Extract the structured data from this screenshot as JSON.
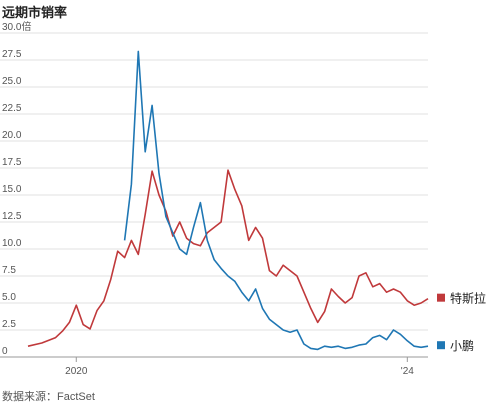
{
  "title": "远期市销率",
  "source": "数据来源：FactSet",
  "chart_data": {
    "type": "line",
    "title": "远期市销率",
    "y_ticks": [
      "0",
      "2.5",
      "5.0",
      "7.5",
      "10.0",
      "12.5",
      "15.0",
      "17.5",
      "20.0",
      "22.5",
      "25.0",
      "27.5",
      "30.0倍"
    ],
    "y_tick_values": [
      0,
      2.5,
      5,
      7.5,
      10,
      12.5,
      15,
      17.5,
      20,
      22.5,
      25,
      27.5,
      30
    ],
    "ylim": [
      0,
      30
    ],
    "x_ticks": [
      "2020",
      "'24"
    ],
    "x_tick_values": [
      "2020-01",
      "2024-01"
    ],
    "xlim": [
      "2019-06",
      "2024-04"
    ],
    "grid": true,
    "legend_position": "right",
    "series": [
      {
        "name": "特斯拉",
        "color": "#c0393b",
        "points": [
          [
            "2019-06",
            1.0
          ],
          [
            "2019-08",
            1.3
          ],
          [
            "2019-10",
            1.8
          ],
          [
            "2019-11",
            2.4
          ],
          [
            "2019-12",
            3.2
          ],
          [
            "2020-01",
            4.8
          ],
          [
            "2020-02",
            3.0
          ],
          [
            "2020-03",
            2.6
          ],
          [
            "2020-04",
            4.3
          ],
          [
            "2020-05",
            5.2
          ],
          [
            "2020-06",
            7.2
          ],
          [
            "2020-07",
            9.8
          ],
          [
            "2020-08",
            9.2
          ],
          [
            "2020-09",
            10.8
          ],
          [
            "2020-10",
            9.5
          ],
          [
            "2020-11",
            13.2
          ],
          [
            "2020-12",
            17.2
          ],
          [
            "2021-01",
            15.0
          ],
          [
            "2021-02",
            13.5
          ],
          [
            "2021-03",
            11.2
          ],
          [
            "2021-04",
            12.5
          ],
          [
            "2021-05",
            11.0
          ],
          [
            "2021-06",
            10.5
          ],
          [
            "2021-07",
            10.3
          ],
          [
            "2021-08",
            11.5
          ],
          [
            "2021-09",
            12.0
          ],
          [
            "2021-10",
            12.5
          ],
          [
            "2021-11",
            17.3
          ],
          [
            "2021-12",
            15.5
          ],
          [
            "2022-01",
            14.0
          ],
          [
            "2022-02",
            10.8
          ],
          [
            "2022-03",
            12.0
          ],
          [
            "2022-04",
            11.0
          ],
          [
            "2022-05",
            8.0
          ],
          [
            "2022-06",
            7.5
          ],
          [
            "2022-07",
            8.5
          ],
          [
            "2022-08",
            8.0
          ],
          [
            "2022-09",
            7.5
          ],
          [
            "2022-10",
            6.0
          ],
          [
            "2022-11",
            4.5
          ],
          [
            "2022-12",
            3.2
          ],
          [
            "2023-01",
            4.2
          ],
          [
            "2023-02",
            6.3
          ],
          [
            "2023-03",
            5.6
          ],
          [
            "2023-04",
            5.0
          ],
          [
            "2023-05",
            5.5
          ],
          [
            "2023-06",
            7.5
          ],
          [
            "2023-07",
            7.8
          ],
          [
            "2023-08",
            6.5
          ],
          [
            "2023-09",
            6.8
          ],
          [
            "2023-10",
            6.0
          ],
          [
            "2023-11",
            6.3
          ],
          [
            "2023-12",
            6.0
          ],
          [
            "2024-01",
            5.2
          ],
          [
            "2024-02",
            4.8
          ],
          [
            "2024-03",
            5.0
          ],
          [
            "2024-04",
            5.4
          ]
        ]
      },
      {
        "name": "小鹏",
        "color": "#1f77b4",
        "points": [
          [
            "2020-08",
            10.8
          ],
          [
            "2020-09",
            16.0
          ],
          [
            "2020-10",
            28.3
          ],
          [
            "2020-11",
            19.0
          ],
          [
            "2020-12",
            23.3
          ],
          [
            "2021-01",
            17.0
          ],
          [
            "2021-02",
            13.0
          ],
          [
            "2021-03",
            11.5
          ],
          [
            "2021-04",
            10.0
          ],
          [
            "2021-05",
            9.5
          ],
          [
            "2021-06",
            12.0
          ],
          [
            "2021-07",
            14.3
          ],
          [
            "2021-08",
            10.8
          ],
          [
            "2021-09",
            9.0
          ],
          [
            "2021-10",
            8.2
          ],
          [
            "2021-11",
            7.5
          ],
          [
            "2021-12",
            7.0
          ],
          [
            "2022-01",
            6.0
          ],
          [
            "2022-02",
            5.2
          ],
          [
            "2022-03",
            6.3
          ],
          [
            "2022-04",
            4.5
          ],
          [
            "2022-05",
            3.5
          ],
          [
            "2022-06",
            3.0
          ],
          [
            "2022-07",
            2.5
          ],
          [
            "2022-08",
            2.3
          ],
          [
            "2022-09",
            2.5
          ],
          [
            "2022-10",
            1.2
          ],
          [
            "2022-11",
            0.8
          ],
          [
            "2022-12",
            0.7
          ],
          [
            "2023-01",
            1.0
          ],
          [
            "2023-02",
            0.9
          ],
          [
            "2023-03",
            1.0
          ],
          [
            "2023-04",
            0.8
          ],
          [
            "2023-05",
            0.9
          ],
          [
            "2023-06",
            1.1
          ],
          [
            "2023-07",
            1.2
          ],
          [
            "2023-08",
            1.8
          ],
          [
            "2023-09",
            2.0
          ],
          [
            "2023-10",
            1.6
          ],
          [
            "2023-11",
            2.5
          ],
          [
            "2023-12",
            2.1
          ],
          [
            "2024-01",
            1.5
          ],
          [
            "2024-02",
            1.0
          ],
          [
            "2024-03",
            0.9
          ],
          [
            "2024-04",
            1.0
          ]
        ]
      }
    ]
  }
}
